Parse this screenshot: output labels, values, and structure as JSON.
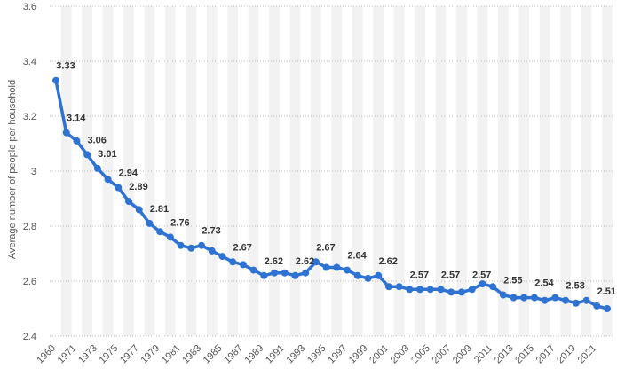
{
  "chart_data": {
    "type": "line",
    "title": "",
    "xlabel": "",
    "ylabel": "Average number of people per household",
    "ylim": [
      2.4,
      3.6
    ],
    "yticks": [
      2.4,
      2.6,
      2.8,
      3,
      3.2,
      3.4,
      3.6
    ],
    "ytick_labels": [
      "2.4",
      "2.6",
      "2.8",
      "3",
      "3.2",
      "3.4",
      "3.6"
    ],
    "xticks": [
      1960,
      1971,
      1973,
      1975,
      1977,
      1979,
      1981,
      1983,
      1985,
      1987,
      1989,
      1991,
      1993,
      1995,
      1997,
      1999,
      2001,
      2003,
      2005,
      2007,
      2009,
      2011,
      2013,
      2015,
      2017,
      2019,
      2021
    ],
    "grid": true,
    "legend": "none",
    "colors": {
      "line": "#2e72d2",
      "grid": "#bbbbbb",
      "band": "#f2f2f2"
    },
    "x": [
      1960,
      1970,
      1971,
      1972,
      1973,
      1974,
      1975,
      1976,
      1977,
      1978,
      1979,
      1980,
      1981,
      1982,
      1983,
      1984,
      1985,
      1986,
      1987,
      1988,
      1989,
      1990,
      1991,
      1992,
      1993,
      1994,
      1995,
      1996,
      1997,
      1998,
      1999,
      2000,
      2001,
      2002,
      2003,
      2004,
      2005,
      2006,
      2007,
      2008,
      2009,
      2010,
      2011,
      2012,
      2013,
      2014,
      2015,
      2016,
      2017,
      2018,
      2019,
      2020,
      2021,
      2022
    ],
    "values": [
      3.33,
      3.14,
      3.11,
      3.06,
      3.01,
      2.97,
      2.94,
      2.89,
      2.86,
      2.81,
      2.78,
      2.76,
      2.73,
      2.72,
      2.73,
      2.71,
      2.69,
      2.67,
      2.66,
      2.64,
      2.62,
      2.63,
      2.63,
      2.62,
      2.63,
      2.67,
      2.65,
      2.65,
      2.64,
      2.62,
      2.61,
      2.62,
      2.58,
      2.58,
      2.57,
      2.57,
      2.57,
      2.57,
      2.56,
      2.56,
      2.57,
      2.59,
      2.58,
      2.55,
      2.54,
      2.54,
      2.54,
      2.53,
      2.54,
      2.53,
      2.52,
      2.53,
      2.51,
      2.5
    ],
    "data_labels": [
      {
        "x": 1960,
        "text": "3.33"
      },
      {
        "x": 1970,
        "text": "3.14"
      },
      {
        "x": 1972,
        "text": "3.06"
      },
      {
        "x": 1973,
        "text": "3.01"
      },
      {
        "x": 1975,
        "text": "2.94"
      },
      {
        "x": 1976,
        "text": "2.89"
      },
      {
        "x": 1978,
        "text": "2.81"
      },
      {
        "x": 1980,
        "text": "2.76"
      },
      {
        "x": 1983,
        "text": "2.73"
      },
      {
        "x": 1986,
        "text": "2.67"
      },
      {
        "x": 1989,
        "text": "2.62"
      },
      {
        "x": 1992,
        "text": "2.62"
      },
      {
        "x": 1994,
        "text": "2.67"
      },
      {
        "x": 1997,
        "text": "2.64"
      },
      {
        "x": 2000,
        "text": "2.62"
      },
      {
        "x": 2003,
        "text": "2.57"
      },
      {
        "x": 2006,
        "text": "2.57"
      },
      {
        "x": 2009,
        "text": "2.57"
      },
      {
        "x": 2012,
        "text": "2.55"
      },
      {
        "x": 2015,
        "text": "2.54"
      },
      {
        "x": 2018,
        "text": "2.53"
      },
      {
        "x": 2021,
        "text": "2.51"
      }
    ]
  }
}
